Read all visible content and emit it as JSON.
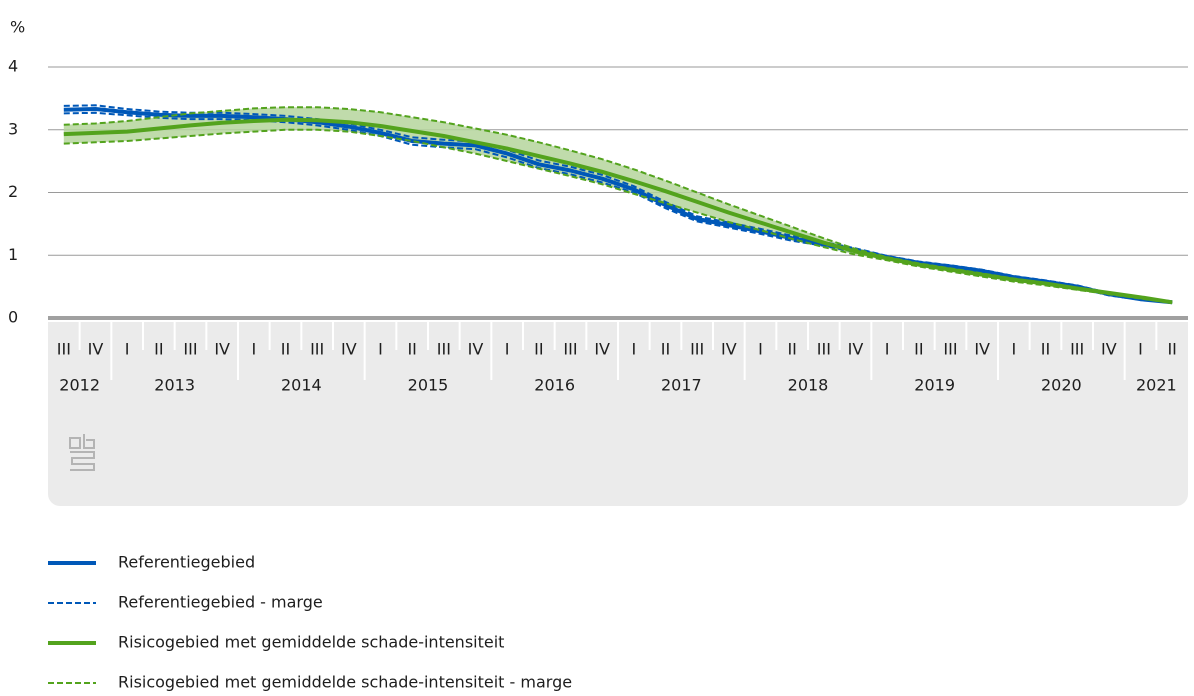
{
  "chart_data": {
    "type": "line",
    "y_label": "%",
    "ylim": [
      0,
      4
    ],
    "yticks": [
      0,
      1,
      2,
      3,
      4
    ],
    "grid": true,
    "groups": [
      {
        "label": "2012",
        "categories": [
          "III",
          "IV"
        ]
      },
      {
        "label": "2013",
        "categories": [
          "I",
          "II",
          "III",
          "IV"
        ]
      },
      {
        "label": "2014",
        "categories": [
          "I",
          "II",
          "III",
          "IV"
        ]
      },
      {
        "label": "2015",
        "categories": [
          "I",
          "II",
          "III",
          "IV"
        ]
      },
      {
        "label": "2016",
        "categories": [
          "I",
          "II",
          "III",
          "IV"
        ]
      },
      {
        "label": "2017",
        "categories": [
          "I",
          "II",
          "III",
          "IV"
        ]
      },
      {
        "label": "2018",
        "categories": [
          "I",
          "II",
          "III",
          "IV"
        ]
      },
      {
        "label": "2019",
        "categories": [
          "I",
          "II",
          "III",
          "IV"
        ]
      },
      {
        "label": "2020",
        "categories": [
          "I",
          "II",
          "III",
          "IV"
        ]
      },
      {
        "label": "2021",
        "categories": [
          "I",
          "II"
        ]
      }
    ],
    "series": [
      {
        "name": "Referentiegebied",
        "color": "#0058b8",
        "style": "solid",
        "values": [
          3.32,
          3.33,
          3.28,
          3.24,
          3.22,
          3.22,
          3.2,
          3.17,
          3.12,
          3.05,
          2.95,
          2.82,
          2.78,
          2.75,
          2.62,
          2.45,
          2.35,
          2.22,
          2.05,
          1.8,
          1.58,
          1.48,
          1.38,
          1.27,
          1.18,
          1.08,
          0.97,
          0.88,
          0.82,
          0.75,
          0.65,
          0.58,
          0.5,
          0.38,
          0.3,
          0.25
        ]
      },
      {
        "name": "Referentiegebied - marge",
        "color": "#0058b8",
        "style": "dashed",
        "upper": [
          3.38,
          3.39,
          3.33,
          3.29,
          3.27,
          3.27,
          3.25,
          3.22,
          3.17,
          3.1,
          3.0,
          2.88,
          2.84,
          2.81,
          2.68,
          2.51,
          2.41,
          2.28,
          2.1,
          1.85,
          1.62,
          1.52,
          1.42,
          1.31,
          1.21,
          1.11,
          0.99,
          0.9,
          0.84,
          0.77,
          0.67,
          0.6,
          0.52,
          0.4,
          0.31,
          0.26
        ],
        "lower": [
          3.26,
          3.27,
          3.23,
          3.19,
          3.17,
          3.17,
          3.15,
          3.12,
          3.07,
          3.0,
          2.9,
          2.76,
          2.72,
          2.69,
          2.56,
          2.39,
          2.29,
          2.16,
          2.0,
          1.75,
          1.54,
          1.44,
          1.34,
          1.23,
          1.15,
          1.05,
          0.95,
          0.86,
          0.8,
          0.73,
          0.63,
          0.56,
          0.48,
          0.36,
          0.29,
          0.24
        ]
      },
      {
        "name": "Risicogebied met gemiddelde schade-intensiteit",
        "color": "#53a31d",
        "style": "solid",
        "values": [
          2.93,
          2.95,
          2.97,
          3.02,
          3.07,
          3.11,
          3.14,
          3.16,
          3.15,
          3.12,
          3.06,
          2.98,
          2.9,
          2.8,
          2.7,
          2.58,
          2.46,
          2.33,
          2.18,
          2.02,
          1.85,
          1.68,
          1.52,
          1.36,
          1.2,
          1.06,
          0.95,
          0.85,
          0.77,
          0.69,
          0.61,
          0.55,
          0.47,
          0.4,
          0.33,
          0.25
        ]
      },
      {
        "name": "Risicogebied met gemiddelde schade-intensiteit - marge",
        "color": "#53a31d",
        "style": "dashed",
        "fill": "#b5d59c",
        "upper": [
          3.08,
          3.1,
          3.14,
          3.2,
          3.26,
          3.3,
          3.34,
          3.36,
          3.36,
          3.33,
          3.28,
          3.2,
          3.12,
          3.02,
          2.92,
          2.8,
          2.67,
          2.53,
          2.37,
          2.19,
          2.0,
          1.81,
          1.63,
          1.45,
          1.27,
          1.1,
          0.97,
          0.87,
          0.79,
          0.71,
          0.63,
          0.56,
          0.48,
          0.41,
          0.34,
          0.26
        ],
        "lower": [
          2.78,
          2.8,
          2.82,
          2.86,
          2.9,
          2.94,
          2.97,
          3.0,
          3.0,
          2.97,
          2.9,
          2.82,
          2.72,
          2.62,
          2.5,
          2.38,
          2.26,
          2.13,
          1.98,
          1.83,
          1.68,
          1.53,
          1.4,
          1.26,
          1.13,
          1.01,
          0.92,
          0.82,
          0.74,
          0.66,
          0.58,
          0.52,
          0.45,
          0.38,
          0.31,
          0.24
        ]
      }
    ]
  }
}
